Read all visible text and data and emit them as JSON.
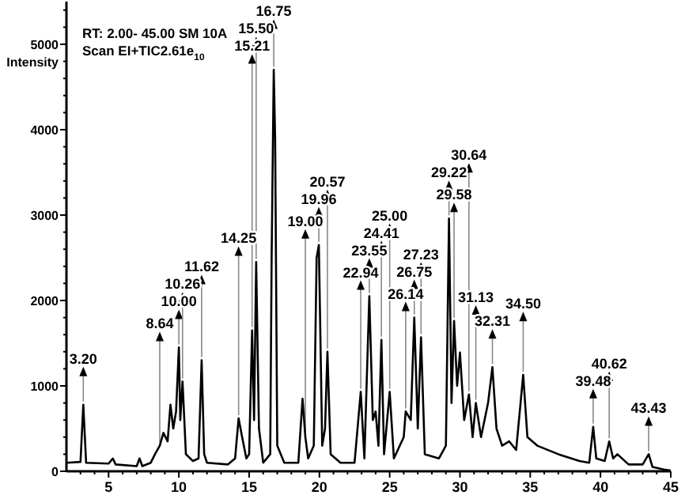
{
  "chart_data": {
    "type": "line",
    "ylabel": "Intensity",
    "xlim": [
      2,
      45
    ],
    "ylim": [
      0,
      5500
    ],
    "xticks": [
      {
        "value": 3,
        "label": null
      },
      {
        "value": 4,
        "label": null
      },
      5,
      {
        "value": 6,
        "label": null
      },
      {
        "value": 7,
        "label": null
      },
      {
        "value": 8,
        "label": null
      },
      {
        "value": 9,
        "label": null
      },
      10,
      {
        "value": 11,
        "label": null
      },
      {
        "value": 12,
        "label": null
      },
      {
        "value": 13,
        "label": null
      },
      {
        "value": 14,
        "label": null
      },
      15,
      {
        "value": 16,
        "label": null
      },
      {
        "value": 17,
        "label": null
      },
      {
        "value": 18,
        "label": null
      },
      {
        "value": 19,
        "label": null
      },
      20,
      {
        "value": 21,
        "label": null
      },
      {
        "value": 22,
        "label": null
      },
      {
        "value": 23,
        "label": null
      },
      {
        "value": 24,
        "label": null
      },
      25,
      {
        "value": 26,
        "label": null
      },
      {
        "value": 27,
        "label": null
      },
      {
        "value": 28,
        "label": null
      },
      {
        "value": 29,
        "label": null
      },
      30,
      {
        "value": 31,
        "label": null
      },
      {
        "value": 32,
        "label": null
      },
      {
        "value": 33,
        "label": null
      },
      {
        "value": 34,
        "label": null
      },
      35,
      {
        "value": 36,
        "label": null
      },
      {
        "value": 37,
        "label": null
      },
      {
        "value": 38,
        "label": null
      },
      {
        "value": 39,
        "label": null
      },
      40,
      {
        "value": 41,
        "label": null
      },
      {
        "value": 42,
        "label": null
      },
      {
        "value": 43,
        "label": null
      },
      {
        "value": 44,
        "label": null
      },
      45
    ],
    "yticks": [
      0,
      {
        "value": 200,
        "label": null
      },
      {
        "value": 400,
        "label": null
      },
      {
        "value": 600,
        "label": null
      },
      {
        "value": 800,
        "label": null
      },
      1000,
      {
        "value": 1200,
        "label": null
      },
      {
        "value": 1400,
        "label": null
      },
      {
        "value": 1600,
        "label": null
      },
      {
        "value": 1800,
        "label": null
      },
      2000,
      {
        "value": 2200,
        "label": null
      },
      {
        "value": 2400,
        "label": null
      },
      {
        "value": 2600,
        "label": null
      },
      {
        "value": 2800,
        "label": null
      },
      3000,
      {
        "value": 3200,
        "label": null
      },
      {
        "value": 3400,
        "label": null
      },
      {
        "value": 3600,
        "label": null
      },
      {
        "value": 3800,
        "label": null
      },
      4000,
      {
        "value": 4200,
        "label": null
      },
      {
        "value": 4400,
        "label": null
      },
      {
        "value": 4600,
        "label": null
      },
      {
        "value": 4800,
        "label": null
      },
      5000,
      {
        "value": 5200,
        "label": null
      },
      {
        "value": 5400,
        "label": null
      }
    ],
    "grid": false,
    "marker": "none",
    "line_style": "solid",
    "series": [
      {
        "color": "#000000",
        "x": [
          2.0,
          3.0,
          3.2,
          3.4,
          5.0,
          5.3,
          5.5,
          7.0,
          7.2,
          7.4,
          8.0,
          8.3,
          8.64,
          8.9,
          9.2,
          9.4,
          9.6,
          9.8,
          10.0,
          10.1,
          10.26,
          10.5,
          11.0,
          11.4,
          11.62,
          11.8,
          12.0,
          13.5,
          14.0,
          14.25,
          14.5,
          14.8,
          15.0,
          15.21,
          15.35,
          15.5,
          15.7,
          16.0,
          16.5,
          16.6,
          16.75,
          16.85,
          17.0,
          17.5,
          18.5,
          18.8,
          19.0,
          19.2,
          19.6,
          19.8,
          19.96,
          20.2,
          20.4,
          20.57,
          20.8,
          21.5,
          22.5,
          22.94,
          23.2,
          23.55,
          23.8,
          24.0,
          24.2,
          24.41,
          24.6,
          25.0,
          25.3,
          26.0,
          26.14,
          26.5,
          26.75,
          27.0,
          27.23,
          27.5,
          28.5,
          29.0,
          29.22,
          29.4,
          29.58,
          29.8,
          30.0,
          30.3,
          30.64,
          30.9,
          31.13,
          31.5,
          32.0,
          32.31,
          32.6,
          33.0,
          33.5,
          34.0,
          34.5,
          34.8,
          35.5,
          37.0,
          38.5,
          39.2,
          39.48,
          39.7,
          40.3,
          40.62,
          40.9,
          41.2,
          42.0,
          43.0,
          43.43,
          43.7,
          44.5,
          45.0
        ],
        "values": [
          100,
          110,
          780,
          100,
          90,
          150,
          80,
          60,
          150,
          60,
          100,
          200,
          300,
          450,
          350,
          780,
          500,
          700,
          1450,
          600,
          1050,
          200,
          120,
          150,
          1300,
          200,
          100,
          80,
          150,
          620,
          400,
          150,
          200,
          1650,
          600,
          2450,
          500,
          100,
          200,
          2500,
          4700,
          3900,
          300,
          100,
          100,
          850,
          400,
          150,
          300,
          2500,
          2650,
          300,
          500,
          1400,
          200,
          100,
          100,
          930,
          150,
          2050,
          600,
          700,
          300,
          1540,
          200,
          930,
          150,
          400,
          700,
          600,
          1800,
          500,
          1570,
          200,
          150,
          300,
          2960,
          800,
          1760,
          1000,
          1390,
          600,
          900,
          400,
          800,
          400,
          800,
          1220,
          500,
          300,
          350,
          250,
          1130,
          400,
          300,
          200,
          120,
          100,
          520,
          150,
          120,
          350,
          150,
          200,
          80,
          80,
          200,
          50,
          20,
          10
        ]
      }
    ],
    "annotations": [
      "RT: 2.00- 45.00 SM 10A",
      "Scan EI+TIC2.61e$_{10}$",
      {
        "text": "3.20",
        "x": 3.2,
        "y": 780
      },
      {
        "text": "8.64",
        "x": 8.64,
        "y": 300
      },
      {
        "text": "10.00",
        "x": 10.0,
        "y": 1450
      },
      {
        "text": "10.26",
        "x": 10.26,
        "y": 1050
      },
      {
        "text": "11.62",
        "x": 11.62,
        "y": 1300
      },
      {
        "text": "14.25",
        "x": 14.25,
        "y": 620
      },
      {
        "text": "15.21",
        "x": 15.21,
        "y": 1650
      },
      {
        "text": "15.50",
        "x": 15.5,
        "y": 2450
      },
      {
        "text": "16.75",
        "x": 16.75,
        "y": 4700
      },
      {
        "text": "19.00",
        "x": 19.0,
        "y": 400
      },
      {
        "text": "19.96",
        "x": 19.96,
        "y": 2650
      },
      {
        "text": "20.57",
        "x": 20.57,
        "y": 1400
      },
      {
        "text": "22.94",
        "x": 22.94,
        "y": 930
      },
      {
        "text": "23.55",
        "x": 23.55,
        "y": 2050
      },
      {
        "text": "24.41",
        "x": 24.41,
        "y": 1540
      },
      {
        "text": "25.00",
        "x": 25.0,
        "y": 930
      },
      {
        "text": "26.14",
        "x": 26.14,
        "y": 700
      },
      {
        "text": "26.75",
        "x": 26.75,
        "y": 1800
      },
      {
        "text": "27.23",
        "x": 27.23,
        "y": 1570
      },
      {
        "text": "29.22",
        "x": 29.22,
        "y": 2960
      },
      {
        "text": "29.58",
        "x": 29.58,
        "y": 1760
      },
      {
        "text": "30.64",
        "x": 30.64,
        "y": 900
      },
      {
        "text": "31.13",
        "x": 31.13,
        "y": 800
      },
      {
        "text": "32.31",
        "x": 32.31,
        "y": 1220
      },
      {
        "text": "34.50",
        "x": 34.5,
        "y": 1130
      },
      {
        "text": "39.48",
        "x": 39.48,
        "y": 520
      },
      {
        "text": "40.62",
        "x": 40.62,
        "y": 350
      },
      {
        "text": "43.43",
        "x": 43.43,
        "y": 200
      }
    ]
  }
}
